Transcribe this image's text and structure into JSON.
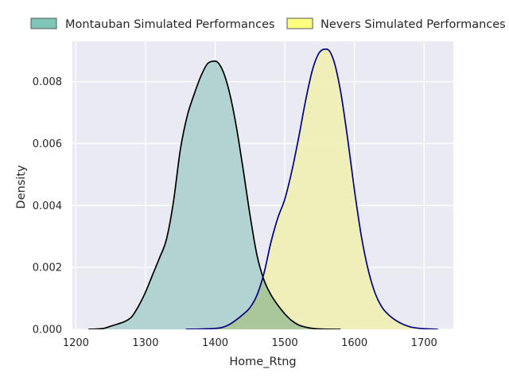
{
  "chart_data": {
    "type": "area",
    "title": "",
    "xlabel": "Home_Rtng",
    "ylabel": "Density",
    "xlim": [
      1195,
      1742
    ],
    "ylim": [
      0,
      0.0093
    ],
    "x_ticks": [
      1200,
      1300,
      1400,
      1500,
      1600,
      1700
    ],
    "y_ticks": [
      0.0,
      0.002,
      0.004,
      0.006,
      0.008
    ],
    "x_tick_labels": [
      "1200",
      "1300",
      "1400",
      "1500",
      "1600",
      "1700"
    ],
    "y_tick_labels": [
      "0.000",
      "0.002",
      "0.004",
      "0.006",
      "0.008"
    ],
    "grid": true,
    "legend_position": "top",
    "series": [
      {
        "name": "Montauban Simulated Performances",
        "fill_color": "#b3d3d3",
        "legend_color": "#7fc6b9",
        "line_color": "#000000",
        "points": [
          [
            1218,
            0.0
          ],
          [
            1230,
            1e-05
          ],
          [
            1240,
            3e-05
          ],
          [
            1250,
            0.0001
          ],
          [
            1260,
            0.00017
          ],
          [
            1270,
            0.00025
          ],
          [
            1280,
            0.0004
          ],
          [
            1290,
            0.00075
          ],
          [
            1300,
            0.0012
          ],
          [
            1310,
            0.00175
          ],
          [
            1320,
            0.0023
          ],
          [
            1330,
            0.0029
          ],
          [
            1340,
            0.0041
          ],
          [
            1350,
            0.0058
          ],
          [
            1360,
            0.0069
          ],
          [
            1370,
            0.0076
          ],
          [
            1380,
            0.0082
          ],
          [
            1390,
            0.0086
          ],
          [
            1400,
            0.00866
          ],
          [
            1410,
            0.0084
          ],
          [
            1420,
            0.0077
          ],
          [
            1430,
            0.0066
          ],
          [
            1440,
            0.0052
          ],
          [
            1450,
            0.0037
          ],
          [
            1460,
            0.0024
          ],
          [
            1470,
            0.0016
          ],
          [
            1480,
            0.00112
          ],
          [
            1490,
            0.00078
          ],
          [
            1500,
            0.0005
          ],
          [
            1510,
            0.00028
          ],
          [
            1520,
            0.00014
          ],
          [
            1530,
            7e-05
          ],
          [
            1540,
            3e-05
          ],
          [
            1550,
            1e-05
          ],
          [
            1580,
            0.0
          ]
        ]
      },
      {
        "name": "Nevers Simulated Performances",
        "fill_color": "#f0f0b4",
        "legend_color": "#ffff80",
        "line_color": "#000080",
        "points": [
          [
            1358,
            0.0
          ],
          [
            1380,
            1e-05
          ],
          [
            1400,
            3e-05
          ],
          [
            1410,
            6e-05
          ],
          [
            1420,
            0.00015
          ],
          [
            1430,
            0.0003
          ],
          [
            1440,
            0.00048
          ],
          [
            1450,
            0.0007
          ],
          [
            1460,
            0.0011
          ],
          [
            1470,
            0.0018
          ],
          [
            1480,
            0.0028
          ],
          [
            1490,
            0.0036
          ],
          [
            1500,
            0.0042
          ],
          [
            1510,
            0.0051
          ],
          [
            1520,
            0.0062
          ],
          [
            1530,
            0.0074
          ],
          [
            1540,
            0.0084
          ],
          [
            1550,
            0.00895
          ],
          [
            1560,
            0.00905
          ],
          [
            1570,
            0.0087
          ],
          [
            1580,
            0.0077
          ],
          [
            1590,
            0.0062
          ],
          [
            1600,
            0.0045
          ],
          [
            1610,
            0.003
          ],
          [
            1620,
            0.0019
          ],
          [
            1630,
            0.00115
          ],
          [
            1640,
            0.0007
          ],
          [
            1650,
            0.00045
          ],
          [
            1660,
            0.00028
          ],
          [
            1670,
            0.00016
          ],
          [
            1680,
            8e-05
          ],
          [
            1690,
            4e-05
          ],
          [
            1700,
            2e-05
          ],
          [
            1720,
            0.0
          ]
        ]
      }
    ],
    "colors": {
      "plot_background": "#eaeaf2",
      "grid": "#ffffff",
      "overlap_fill": "#b5d5a3"
    }
  }
}
